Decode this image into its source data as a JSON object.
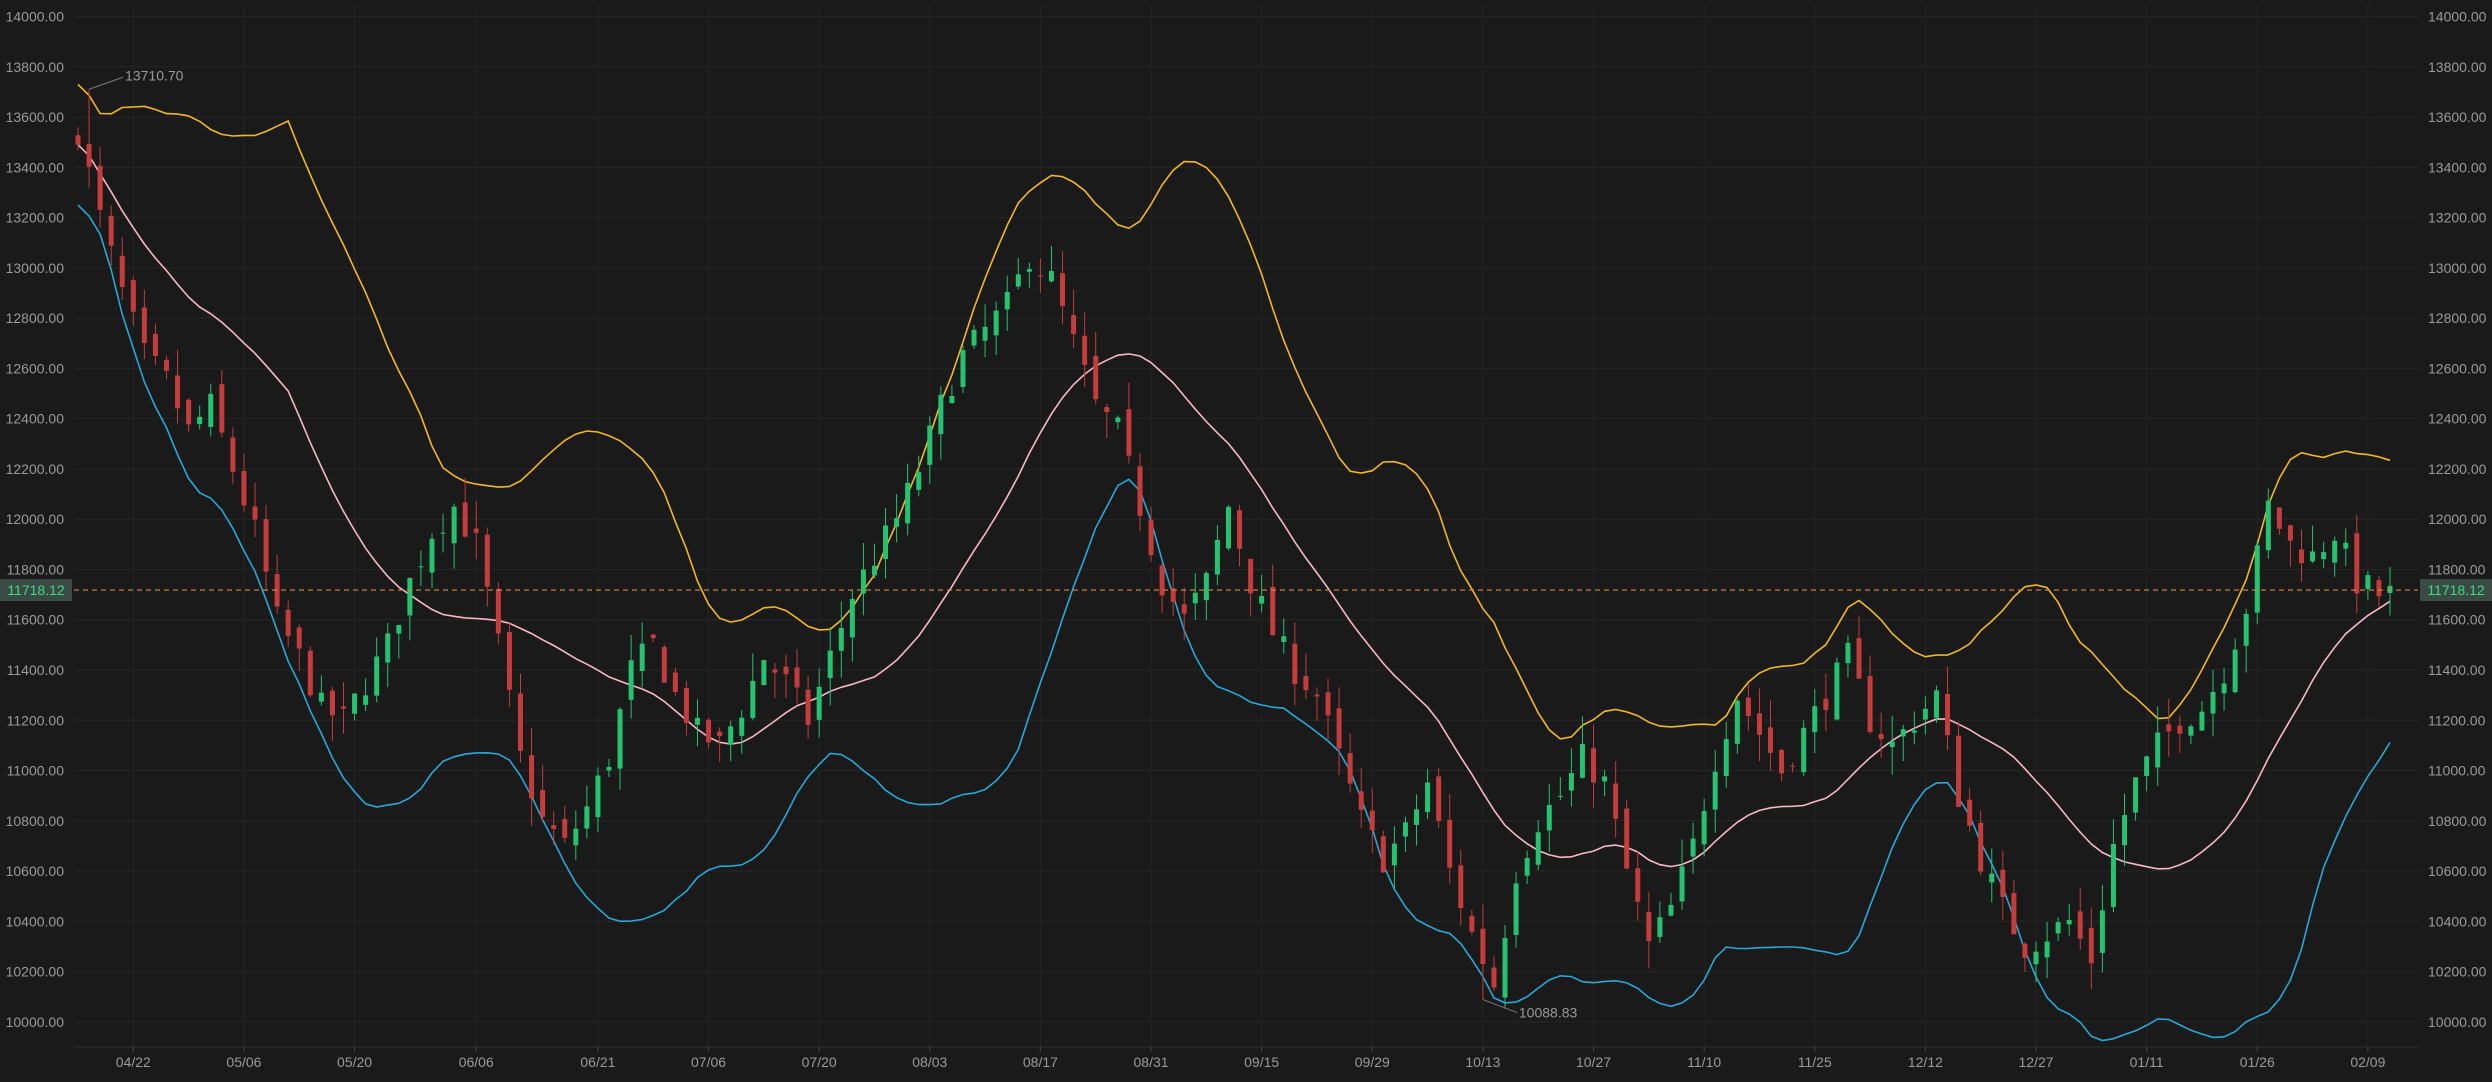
{
  "chart_data": {
    "type": "candlestick",
    "y_ticks": [
      "14000.00",
      "13800.00",
      "13600.00",
      "13400.00",
      "13200.00",
      "13000.00",
      "12800.00",
      "12600.00",
      "12400.00",
      "12200.00",
      "12000.00",
      "11800.00",
      "11600.00",
      "11400.00",
      "11200.00",
      "11000.00",
      "10800.00",
      "10600.00",
      "10400.00",
      "10200.00",
      "10000.00"
    ],
    "ylim": [
      9900,
      14050
    ],
    "x_ticks": [
      {
        "label": "04/22",
        "i": 5
      },
      {
        "label": "05/06",
        "i": 15
      },
      {
        "label": "05/20",
        "i": 25
      },
      {
        "label": "06/06",
        "i": 36
      },
      {
        "label": "06/21",
        "i": 47
      },
      {
        "label": "07/06",
        "i": 57
      },
      {
        "label": "07/20",
        "i": 67
      },
      {
        "label": "08/03",
        "i": 77
      },
      {
        "label": "08/17",
        "i": 87
      },
      {
        "label": "08/31",
        "i": 97
      },
      {
        "label": "09/15",
        "i": 107
      },
      {
        "label": "09/29",
        "i": 117
      },
      {
        "label": "10/13",
        "i": 127
      },
      {
        "label": "10/27",
        "i": 137
      },
      {
        "label": "11/10",
        "i": 147
      },
      {
        "label": "11/25",
        "i": 157
      },
      {
        "label": "12/12",
        "i": 167
      },
      {
        "label": "12/27",
        "i": 177
      },
      {
        "label": "01/11",
        "i": 187
      },
      {
        "label": "01/26",
        "i": 197
      },
      {
        "label": "02/09",
        "i": 207
      }
    ],
    "close_anchors": [
      [
        0,
        13550
      ],
      [
        2,
        13200
      ],
      [
        4,
        12900
      ],
      [
        6,
        12650
      ],
      [
        8,
        12550
      ],
      [
        10,
        12350
      ],
      [
        12,
        12450
      ],
      [
        14,
        12200
      ],
      [
        16,
        11950
      ],
      [
        18,
        11600
      ],
      [
        20,
        11450
      ],
      [
        22,
        11250
      ],
      [
        24,
        11200
      ],
      [
        26,
        11350
      ],
      [
        28,
        11500
      ],
      [
        30,
        11750
      ],
      [
        32,
        11950
      ],
      [
        34,
        12050
      ],
      [
        36,
        11900
      ],
      [
        38,
        11500
      ],
      [
        40,
        11050
      ],
      [
        42,
        10800
      ],
      [
        44,
        10700
      ],
      [
        46,
        10850
      ],
      [
        48,
        11050
      ],
      [
        50,
        11400
      ],
      [
        52,
        11500
      ],
      [
        54,
        11300
      ],
      [
        56,
        11150
      ],
      [
        58,
        11100
      ],
      [
        60,
        11250
      ],
      [
        62,
        11450
      ],
      [
        64,
        11350
      ],
      [
        66,
        11200
      ],
      [
        68,
        11450
      ],
      [
        70,
        11700
      ],
      [
        72,
        11850
      ],
      [
        74,
        12000
      ],
      [
        76,
        12200
      ],
      [
        78,
        12450
      ],
      [
        80,
        12650
      ],
      [
        82,
        12750
      ],
      [
        84,
        12850
      ],
      [
        86,
        13050
      ],
      [
        88,
        12950
      ],
      [
        90,
        12700
      ],
      [
        92,
        12450
      ],
      [
        94,
        12350
      ],
      [
        96,
        12050
      ],
      [
        98,
        11750
      ],
      [
        100,
        11600
      ],
      [
        102,
        11750
      ],
      [
        104,
        12050
      ],
      [
        106,
        11750
      ],
      [
        108,
        11550
      ],
      [
        110,
        11400
      ],
      [
        112,
        11300
      ],
      [
        114,
        11050
      ],
      [
        116,
        10800
      ],
      [
        118,
        10650
      ],
      [
        120,
        10750
      ],
      [
        122,
        10950
      ],
      [
        124,
        10600
      ],
      [
        126,
        10350
      ],
      [
        128,
        10150
      ],
      [
        130,
        10600
      ],
      [
        132,
        10800
      ],
      [
        134,
        10900
      ],
      [
        136,
        11050
      ],
      [
        138,
        10950
      ],
      [
        140,
        10600
      ],
      [
        142,
        10300
      ],
      [
        144,
        10450
      ],
      [
        146,
        10700
      ],
      [
        148,
        11050
      ],
      [
        150,
        11300
      ],
      [
        152,
        11150
      ],
      [
        154,
        11000
      ],
      [
        156,
        11150
      ],
      [
        158,
        11300
      ],
      [
        160,
        11450
      ],
      [
        162,
        11200
      ],
      [
        164,
        11100
      ],
      [
        166,
        11200
      ],
      [
        168,
        11300
      ],
      [
        170,
        10900
      ],
      [
        172,
        10650
      ],
      [
        174,
        10450
      ],
      [
        176,
        10300
      ],
      [
        178,
        10350
      ],
      [
        180,
        10400
      ],
      [
        182,
        10250
      ],
      [
        184,
        10700
      ],
      [
        186,
        10950
      ],
      [
        188,
        11100
      ],
      [
        190,
        11200
      ],
      [
        192,
        11250
      ],
      [
        194,
        11400
      ],
      [
        196,
        11650
      ],
      [
        198,
        12050
      ],
      [
        200,
        11900
      ],
      [
        202,
        11850
      ],
      [
        204,
        11950
      ],
      [
        206,
        11750
      ],
      [
        208,
        11700
      ]
    ],
    "series": [
      {
        "name": "",
        "role": "upper",
        "color": "#f2b824"
      },
      {
        "name": "",
        "role": "middle",
        "color": "#f7b8c4"
      },
      {
        "name": "",
        "role": "lower",
        "color": "#28a8d8"
      }
    ],
    "up_color": "#25c26f",
    "down_color": "#c43c3c",
    "bollinger_period": 20,
    "bollinger_k": 2,
    "current_price": {
      "value": 11718.12,
      "label": "11718.12",
      "color": "#e08a3c"
    },
    "annotations": [
      {
        "label": "13710.70",
        "value": 13710.7,
        "i": 1
      },
      {
        "label": "10088.83",
        "value": 10088.83,
        "i": 127
      }
    ]
  }
}
